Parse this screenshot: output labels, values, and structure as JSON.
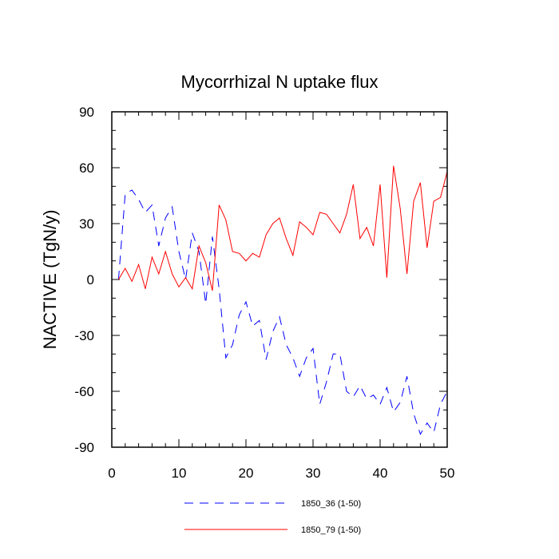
{
  "chart_data": {
    "type": "line",
    "title": "Mycorrhizal N uptake flux",
    "xlabel": "",
    "ylabel": "NACTIVE  (TgN/y)",
    "xlim": [
      0,
      50
    ],
    "ylim": [
      -90,
      90
    ],
    "xticks": [
      0,
      10,
      20,
      30,
      40,
      50
    ],
    "yticks": [
      -90,
      -60,
      -30,
      0,
      30,
      60,
      90
    ],
    "grid": false,
    "legend": "bottom-center",
    "x": [
      1,
      2,
      3,
      4,
      5,
      6,
      7,
      8,
      9,
      10,
      11,
      12,
      13,
      14,
      15,
      16,
      17,
      18,
      19,
      20,
      21,
      22,
      23,
      24,
      25,
      26,
      27,
      28,
      29,
      30,
      31,
      32,
      33,
      34,
      35,
      36,
      37,
      38,
      39,
      40,
      41,
      42,
      43,
      44,
      45,
      46,
      47,
      48,
      49,
      50
    ],
    "series": [
      {
        "name": "1850_36 (1-50)",
        "color": "#0000ff",
        "style": "dashed",
        "values": [
          0,
          46,
          48,
          43,
          36,
          40,
          18,
          33,
          39,
          15,
          0,
          25,
          15,
          -13,
          23,
          -5,
          -42,
          -35,
          -19,
          -12,
          -25,
          -22,
          -43,
          -28,
          -20,
          -35,
          -42,
          -52,
          -42,
          -37,
          -67,
          -55,
          -40,
          -40,
          -60,
          -63,
          -57,
          -64,
          -62,
          -67,
          -58,
          -71,
          -66,
          -52,
          -72,
          -83,
          -77,
          -82,
          -67,
          -60
        ]
      },
      {
        "name": "1850_79 (1-50)",
        "color": "#ff0000",
        "style": "solid",
        "values": [
          0,
          6,
          -1,
          8,
          -5,
          12,
          3,
          15,
          3,
          -4,
          1,
          -5,
          18,
          9,
          -6,
          40,
          32,
          15,
          14,
          10,
          14,
          12,
          24,
          30,
          33,
          22,
          13,
          31,
          28,
          24,
          36,
          35,
          30,
          25,
          35,
          51,
          22,
          28,
          18,
          51,
          1,
          61,
          38,
          3,
          42,
          52,
          17,
          42,
          44,
          58
        ]
      }
    ]
  }
}
